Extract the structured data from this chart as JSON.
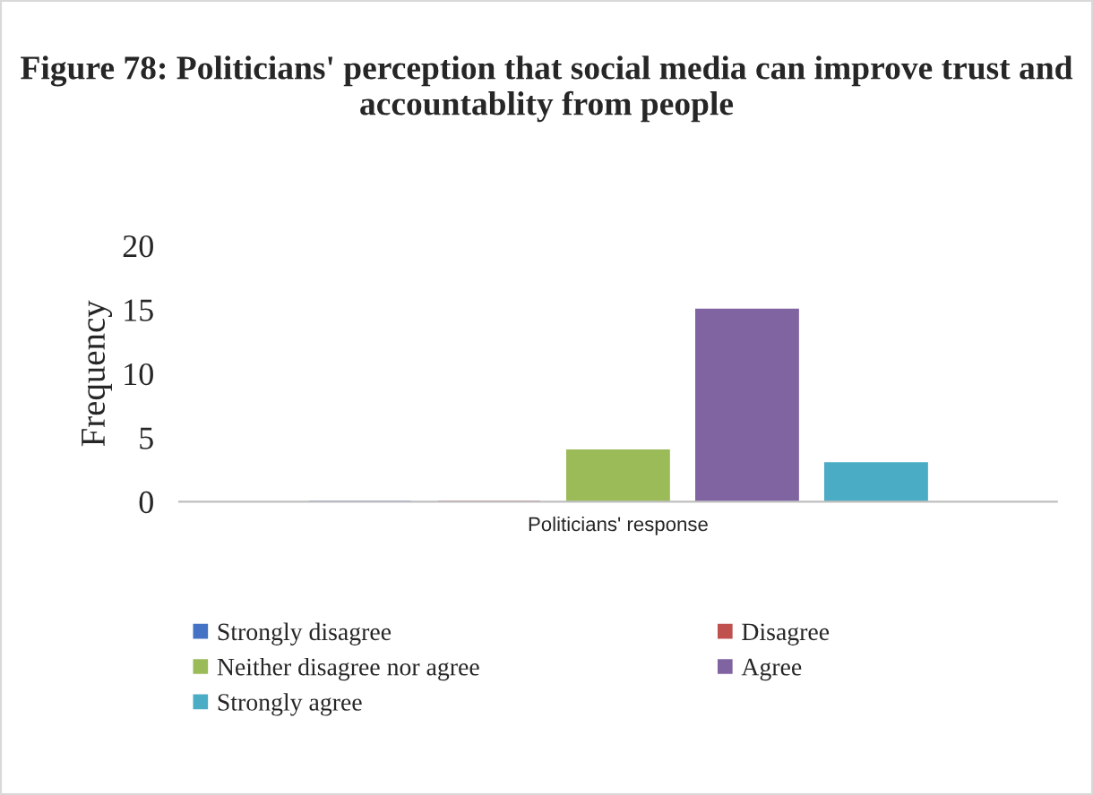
{
  "chart_data": {
    "type": "bar",
    "title": "Figure 78: Politicians' perception that social media can improve trust and accountablity from people",
    "ylabel": "Frequency",
    "categories": [
      "Politicians' response"
    ],
    "series": [
      {
        "name": "Strongly disagree",
        "color": "#4472c4",
        "values": [
          0
        ]
      },
      {
        "name": "Disagree",
        "color": "#c0504d",
        "values": [
          0
        ]
      },
      {
        "name": "Neither disagree nor agree",
        "color": "#9bbb59",
        "values": [
          4
        ]
      },
      {
        "name": "Agree",
        "color": "#8064a2",
        "values": [
          15
        ]
      },
      {
        "name": "Strongly agree",
        "color": "#4bacc6",
        "values": [
          3
        ]
      }
    ],
    "ylim": [
      0,
      20
    ],
    "yticks": [
      0,
      5,
      10,
      15,
      20
    ],
    "grid": false,
    "legend": "bottom"
  }
}
